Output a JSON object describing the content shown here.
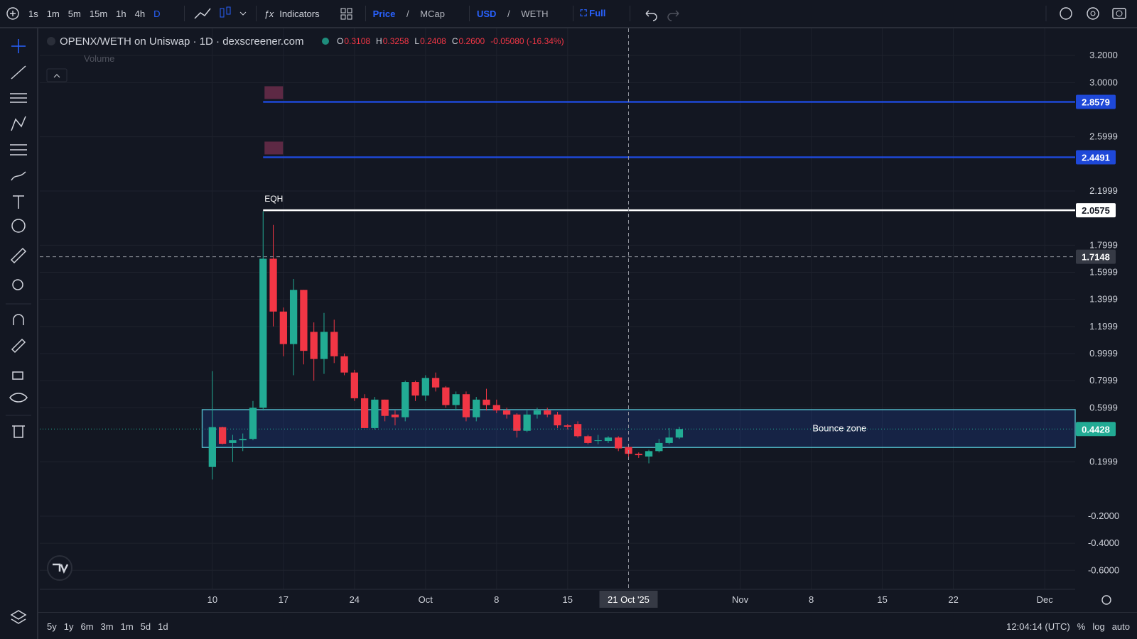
{
  "toolbar": {
    "intervals": [
      "1s",
      "1m",
      "5m",
      "15m",
      "1h",
      "4h",
      "D"
    ],
    "indicators": "Indicators",
    "price_mcap": [
      "Price",
      "/",
      "MCap"
    ],
    "currency": [
      "USD",
      "/",
      "WETH"
    ],
    "full": "Full"
  },
  "legend": {
    "symbol": "OPENX/WETH on Uniswap · 1D · dexscreener.com",
    "ohlc": [
      {
        "key": "O",
        "value": "0.3108"
      },
      {
        "key": "H",
        "value": "0.3258"
      },
      {
        "key": "L",
        "value": "0.2408"
      },
      {
        "key": "C",
        "value": "0.2600"
      }
    ],
    "change": "-0.05080 (-16.34%)",
    "volume": "Volume"
  },
  "bottom": {
    "ranges": [
      "5y",
      "1y",
      "6m",
      "3m",
      "1m",
      "5d",
      "1d"
    ],
    "clock": "12:04:14 (UTC)",
    "percent": "%",
    "log": "log",
    "auto": "auto"
  },
  "chart_data": {
    "type": "candlestick",
    "up_color": "#22ab94",
    "down_color": "#f23645",
    "grid": true,
    "x": [
      "2025-09-10",
      "2025-09-11",
      "2025-09-12",
      "2025-09-13",
      "2025-09-14",
      "2025-09-15",
      "2025-09-16",
      "2025-09-17",
      "2025-09-18",
      "2025-09-19",
      "2025-09-20",
      "2025-09-21",
      "2025-09-22",
      "2025-09-23",
      "2025-09-24",
      "2025-09-25",
      "2025-09-26",
      "2025-09-27",
      "2025-09-28",
      "2025-09-29",
      "2025-09-30",
      "2025-10-01",
      "2025-10-02",
      "2025-10-03",
      "2025-10-04",
      "2025-10-05",
      "2025-10-06",
      "2025-10-07",
      "2025-10-08",
      "2025-10-09",
      "2025-10-10",
      "2025-10-11",
      "2025-10-12",
      "2025-10-13",
      "2025-10-14",
      "2025-10-15",
      "2025-10-16",
      "2025-10-17",
      "2025-10-18",
      "2025-10-19",
      "2025-10-20",
      "2025-10-21",
      "2025-10-22",
      "2025-10-23",
      "2025-10-24",
      "2025-10-25",
      "2025-10-26"
    ],
    "open": [
      0.163,
      0.457,
      0.34,
      0.36,
      0.37,
      0.6,
      1.7,
      1.31,
      1.07,
      1.47,
      1.16,
      0.96,
      1.16,
      0.98,
      0.86,
      0.67,
      0.45,
      0.66,
      0.55,
      0.53,
      0.79,
      0.69,
      0.82,
      0.75,
      0.62,
      0.7,
      0.53,
      0.66,
      0.62,
      0.58,
      0.55,
      0.43,
      0.55,
      0.58,
      0.55,
      0.47,
      0.48,
      0.39,
      0.355,
      0.355,
      0.38,
      0.3108,
      0.26,
      0.24,
      0.28,
      0.34,
      0.38
    ],
    "high": [
      0.87,
      0.46,
      0.4,
      0.41,
      0.65,
      2.05,
      1.95,
      1.34,
      1.55,
      1.47,
      1.23,
      1.3,
      1.25,
      1.0,
      0.88,
      0.7,
      0.68,
      0.66,
      0.58,
      0.8,
      0.8,
      0.84,
      0.86,
      0.76,
      0.72,
      0.72,
      0.68,
      0.74,
      0.66,
      0.6,
      0.56,
      0.58,
      0.6,
      0.6,
      0.57,
      0.48,
      0.5,
      0.4,
      0.4,
      0.39,
      0.39,
      0.3258,
      0.27,
      0.29,
      0.37,
      0.45,
      0.46
    ],
    "low": [
      0.07,
      0.33,
      0.2,
      0.28,
      0.36,
      0.58,
      1.2,
      0.98,
      0.84,
      0.92,
      0.8,
      0.85,
      0.93,
      0.84,
      0.65,
      0.45,
      0.44,
      0.5,
      0.47,
      0.5,
      0.65,
      0.65,
      0.72,
      0.6,
      0.58,
      0.5,
      0.5,
      0.58,
      0.56,
      0.52,
      0.38,
      0.42,
      0.52,
      0.53,
      0.45,
      0.44,
      0.38,
      0.33,
      0.33,
      0.34,
      0.28,
      0.2408,
      0.23,
      0.19,
      0.27,
      0.33,
      0.37
    ],
    "close": [
      0.457,
      0.334,
      0.36,
      0.37,
      0.6,
      1.7,
      1.31,
      1.07,
      1.47,
      1.02,
      0.96,
      1.16,
      0.98,
      0.86,
      0.67,
      0.45,
      0.66,
      0.54,
      0.53,
      0.79,
      0.69,
      0.82,
      0.75,
      0.62,
      0.7,
      0.53,
      0.66,
      0.62,
      0.58,
      0.55,
      0.43,
      0.55,
      0.58,
      0.55,
      0.47,
      0.46,
      0.39,
      0.34,
      0.36,
      0.38,
      0.3,
      0.26,
      0.25,
      0.28,
      0.34,
      0.38,
      0.4428
    ],
    "xlim": [
      "2025-08-24",
      "2025-12-04"
    ],
    "ylim": [
      -0.74,
      3.4
    ],
    "xticks": [
      {
        "value": "2025-09-10",
        "label": "10"
      },
      {
        "value": "2025-09-17",
        "label": "17"
      },
      {
        "value": "2025-09-24",
        "label": "24"
      },
      {
        "value": "2025-10-01",
        "label": "Oct"
      },
      {
        "value": "2025-10-08",
        "label": "8"
      },
      {
        "value": "2025-10-15",
        "label": "15"
      },
      {
        "value": "2025-11-01",
        "label": "Nov"
      },
      {
        "value": "2025-11-08",
        "label": "8"
      },
      {
        "value": "2025-11-15",
        "label": "15"
      },
      {
        "value": "2025-11-22",
        "label": "22"
      },
      {
        "value": "2025-12-01",
        "label": "Dec"
      }
    ],
    "yticks": [
      {
        "value": 3.2,
        "label": "3.2000"
      },
      {
        "value": 3,
        "label": "3.0000"
      },
      2.5999,
      2.1999,
      1.7999,
      1.5999,
      1.3999,
      1.1999,
      0.9999,
      0.7999,
      0.5999,
      0.1999,
      {
        "value": -0.2,
        "label": "-0.2000"
      },
      {
        "value": -0.4,
        "label": "-0.4000"
      },
      {
        "value": -0.6,
        "label": "-0.6000"
      }
    ],
    "price_lines": [
      {
        "value": 2.8579,
        "color": "#1e48d8",
        "start": "2025-09-15"
      },
      {
        "value": 2.4491,
        "color": "#1e48d8",
        "start": "2025-09-15"
      },
      {
        "value": 2.0575,
        "color": "#ffffff",
        "start": "2025-09-15",
        "label": "EQH"
      }
    ],
    "zone": {
      "label": "Bounce zone",
      "from": "2025-09-09",
      "low": 0.307,
      "high": 0.586
    },
    "crosshair": {
      "x": "2025-10-21",
      "x_label": "21 Oct '25",
      "y": 1.7148
    },
    "last_price": {
      "value": 0.4428,
      "color": "#22ab94"
    }
  }
}
